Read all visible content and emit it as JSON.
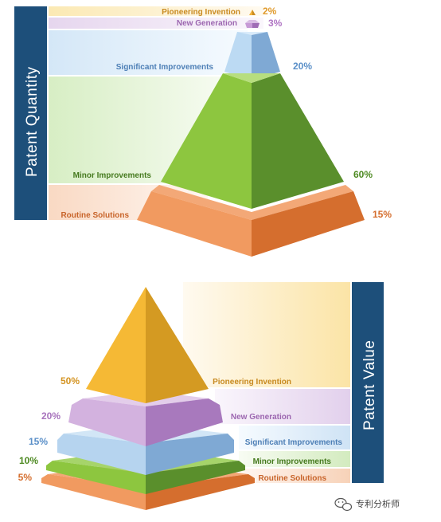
{
  "top_chart": {
    "side_label": "Patent Quantity",
    "levels": [
      {
        "name": "Pioneering Invention",
        "percent": "2%",
        "color": "#e8a13a"
      },
      {
        "name": "New Generation",
        "percent": "3%",
        "color": "#b887c4"
      },
      {
        "name": "Significant Improvements",
        "percent": "20%",
        "color": "#6f9fce"
      },
      {
        "name": "Minor Improvements",
        "percent": "60%",
        "color": "#5a9a2e"
      },
      {
        "name": "Routine Solutions",
        "percent": "15%",
        "color": "#e07a3c"
      }
    ]
  },
  "bottom_chart": {
    "side_label": "Patent Value",
    "levels": [
      {
        "name": "Pioneering Invention",
        "percent": "50%",
        "color": "#e8a13a"
      },
      {
        "name": "New Generation",
        "percent": "20%",
        "color": "#b887c4"
      },
      {
        "name": "Significant Improvements",
        "percent": "15%",
        "color": "#6f9fce"
      },
      {
        "name": "Minor Improvements",
        "percent": "10%",
        "color": "#5a9a2e"
      },
      {
        "name": "Routine Solutions",
        "percent": "5%",
        "color": "#e07a3c"
      }
    ]
  },
  "watermark": {
    "icon": "wechat-icon",
    "text": "专利分析师"
  }
}
